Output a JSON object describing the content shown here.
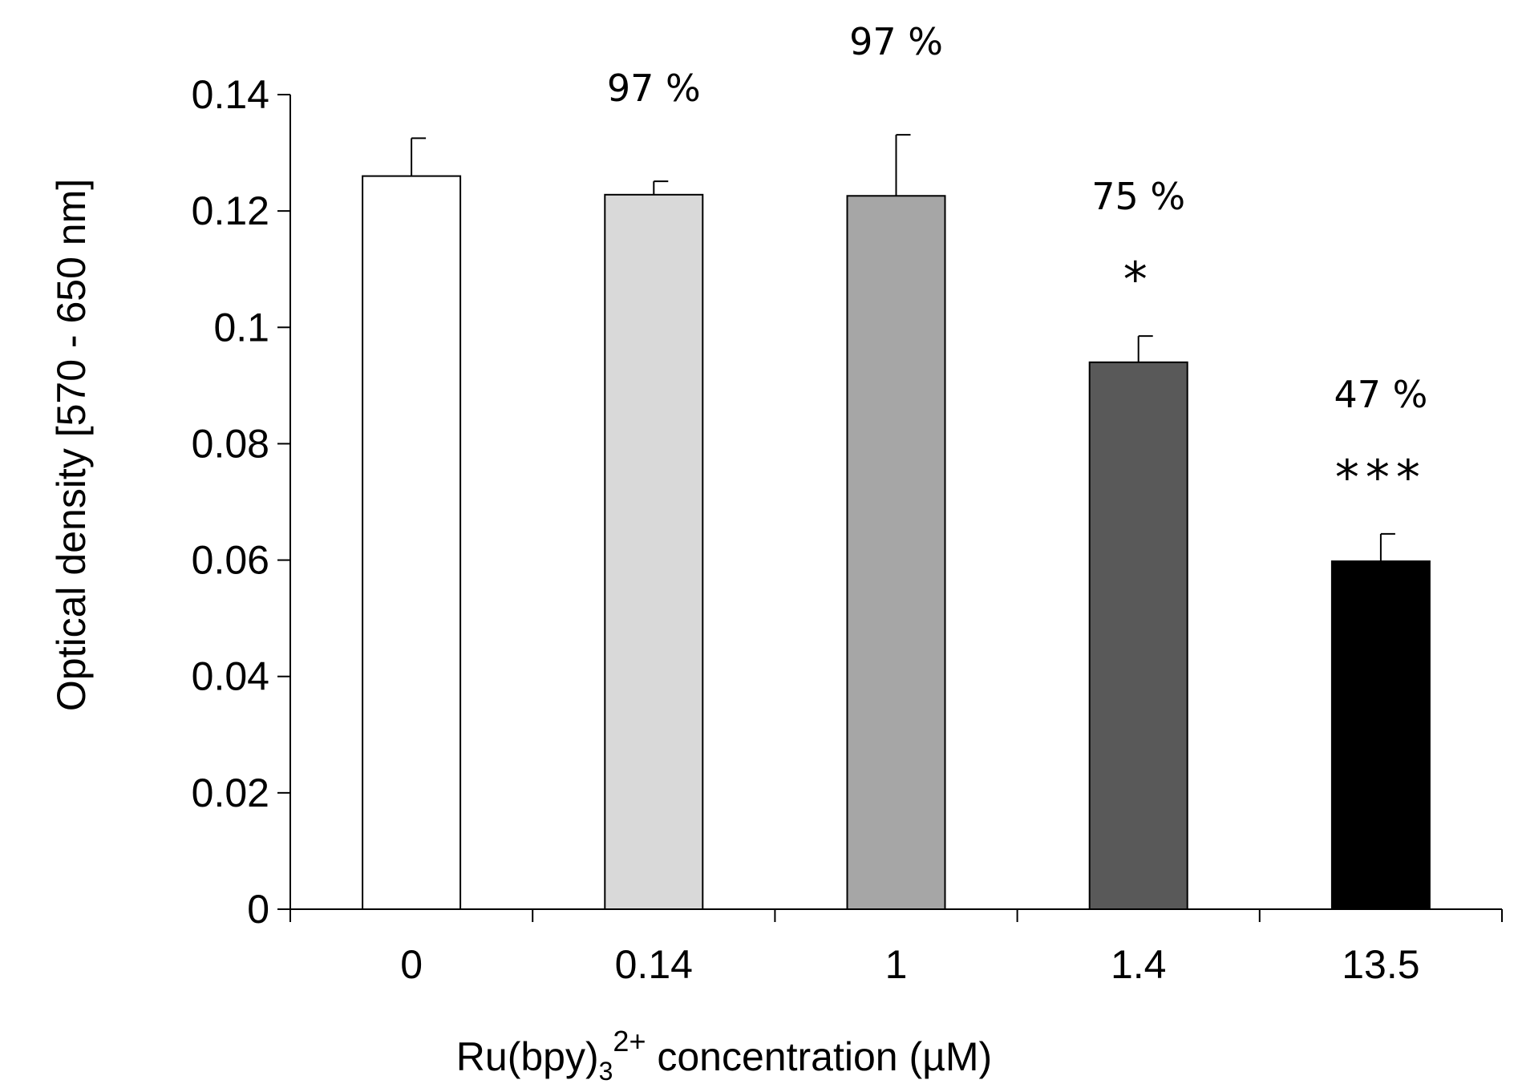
{
  "chart_data": {
    "type": "bar",
    "categories": [
      "0",
      "0.14",
      "1",
      "1.4",
      "13.5"
    ],
    "values": [
      0.126,
      0.1228,
      0.1226,
      0.094,
      0.0598
    ],
    "errors": [
      0.0065,
      0.0023,
      0.0105,
      0.0045,
      0.0047
    ],
    "annotations": [
      "",
      "97 %",
      "97 %",
      "75 %",
      "47 %"
    ],
    "significance": [
      "",
      "",
      "",
      "*",
      "***"
    ],
    "colors": [
      "#ffffff",
      "#d9d9d9",
      "#a6a6a6",
      "#595959",
      "#000000"
    ],
    "xlabel_main": "Ru(bpy)",
    "xlabel_sub": "3",
    "xlabel_sup": "2+",
    "xlabel_tail": " concentration (µM)",
    "ylabel": "Optical density [570 - 650 nm]",
    "yticks": [
      "0",
      "0.02",
      "0.04",
      "0.06",
      "0.08",
      "0.1",
      "0.12",
      "0.14"
    ],
    "ylim": [
      0,
      0.14
    ]
  }
}
